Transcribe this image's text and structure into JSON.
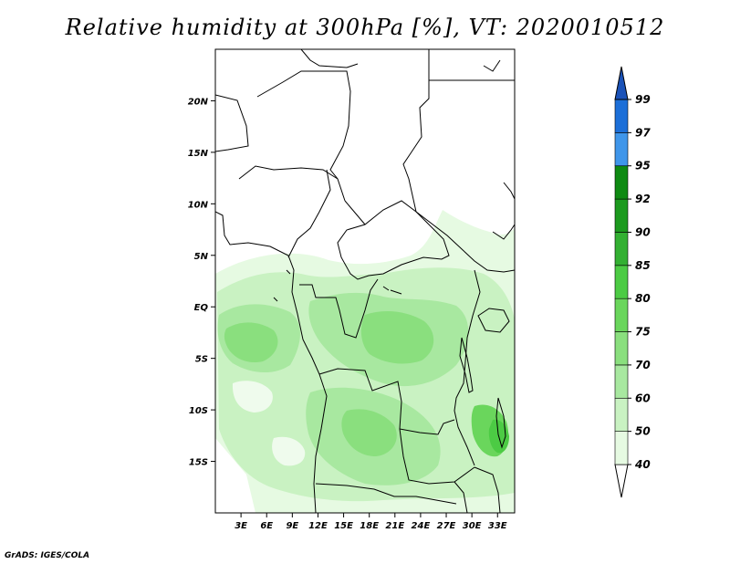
{
  "title": "Relative humidity at 300hPa [%], VT: 2020010512",
  "credit": "GrADS: IGES/COLA",
  "map": {
    "lon_ticks": [
      "3E",
      "6E",
      "9E",
      "12E",
      "15E",
      "18E",
      "21E",
      "24E",
      "27E",
      "30E",
      "33E"
    ],
    "lat_ticks": [
      "20N",
      "15N",
      "10N",
      "5N",
      "EQ",
      "5S",
      "10S",
      "15S"
    ],
    "lon_range": [
      0,
      35
    ],
    "lat_range": [
      -20,
      25
    ]
  },
  "colorbar": {
    "labels": [
      "40",
      "50",
      "60",
      "70",
      "75",
      "80",
      "85",
      "90",
      "92",
      "95",
      "97",
      "99"
    ],
    "colors": [
      "#ffffff",
      "#e6fae2",
      "#c9f2c2",
      "#a8e8a0",
      "#8adf7e",
      "#6ad65c",
      "#4ccb44",
      "#33b032",
      "#1c9a1e",
      "#0e8a12",
      "#3f96ea",
      "#1c6fd8",
      "#1a52b8"
    ]
  }
}
